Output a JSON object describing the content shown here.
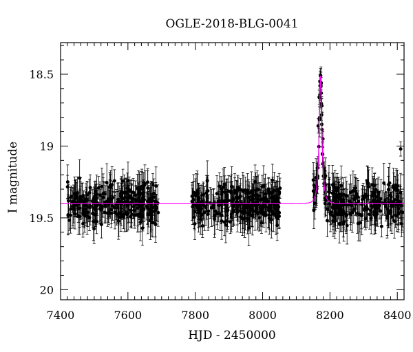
{
  "chart_data": {
    "type": "scatter",
    "title": "OGLE-2018-BLG-0041",
    "xlabel": "HJD - 2450000",
    "ylabel": "I magnitude",
    "xlim": [
      7400,
      8420
    ],
    "ylim": [
      19.0,
      20.0
    ],
    "y_inverted": true,
    "y_range_display": [
      18.28,
      20.07
    ],
    "x_ticks": [
      7400,
      7600,
      7800,
      8000,
      8200,
      8400
    ],
    "x_tick_labels": [
      "7400",
      "7600",
      "7800",
      "8000",
      "8200",
      "8400"
    ],
    "y_ticks": [
      18.5,
      19,
      19.5,
      20
    ],
    "y_tick_labels": [
      "18.5",
      "19",
      "19.5",
      "20"
    ],
    "grid": false,
    "colors": {
      "points": "#000000",
      "model": "#ff00ff"
    },
    "series": [
      {
        "kind": "observations",
        "marker": "filled-circle-with-errorbars",
        "segments": [
          {
            "x_range": [
              7420,
              7690
            ],
            "baseline_mag": 19.4,
            "scatter_mag": 0.13
          },
          {
            "x_range": [
              7790,
              8055
            ],
            "baseline_mag": 19.4,
            "scatter_mag": 0.13
          },
          {
            "x_range": [
              8150,
              8415
            ],
            "baseline_mag": 19.4,
            "scatter_mag": 0.13
          }
        ],
        "peak": {
          "x": 8172,
          "mag": 18.51
        },
        "sample_points": [
          {
            "x": 8165,
            "y": 18.86
          },
          {
            "x": 8168,
            "y": 18.66
          },
          {
            "x": 8170,
            "y": 18.55
          },
          {
            "x": 8172,
            "y": 18.51
          },
          {
            "x": 8174,
            "y": 18.56
          },
          {
            "x": 8176,
            "y": 18.72
          },
          {
            "x": 8179,
            "y": 18.95
          },
          {
            "x": 8183,
            "y": 19.16
          },
          {
            "x": 8410,
            "y": 19.02
          }
        ]
      },
      {
        "kind": "model",
        "line_type": "microlensing-PSPL",
        "t0": 8172,
        "u0": 0.28,
        "tE": 9,
        "baseline_mag": 19.4,
        "peak_mag": 18.51
      }
    ]
  }
}
